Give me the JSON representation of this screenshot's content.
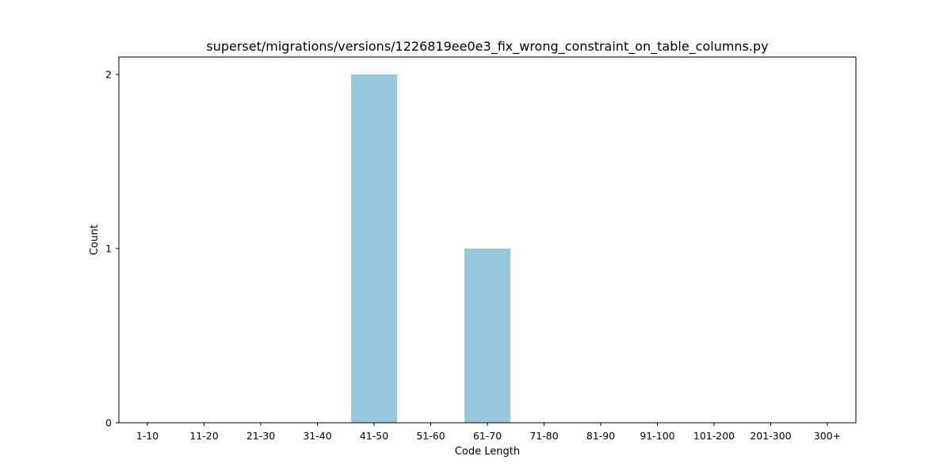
{
  "chart_data": {
    "type": "bar",
    "title": "superset/migrations/versions/1226819ee0e3_fix_wrong_constraint_on_table_columns.py",
    "xlabel": "Code Length",
    "ylabel": "Count",
    "categories": [
      "1-10",
      "11-20",
      "21-30",
      "31-40",
      "41-50",
      "51-60",
      "61-70",
      "71-80",
      "81-90",
      "91-100",
      "101-200",
      "201-300",
      "300+"
    ],
    "values": [
      0,
      0,
      0,
      0,
      2,
      0,
      1,
      0,
      0,
      0,
      0,
      0,
      0
    ],
    "yticks": [
      0,
      1,
      2
    ],
    "ylim": [
      0,
      2.1
    ],
    "bar_color": "#96c9dc",
    "grid": false,
    "legend": "none"
  }
}
